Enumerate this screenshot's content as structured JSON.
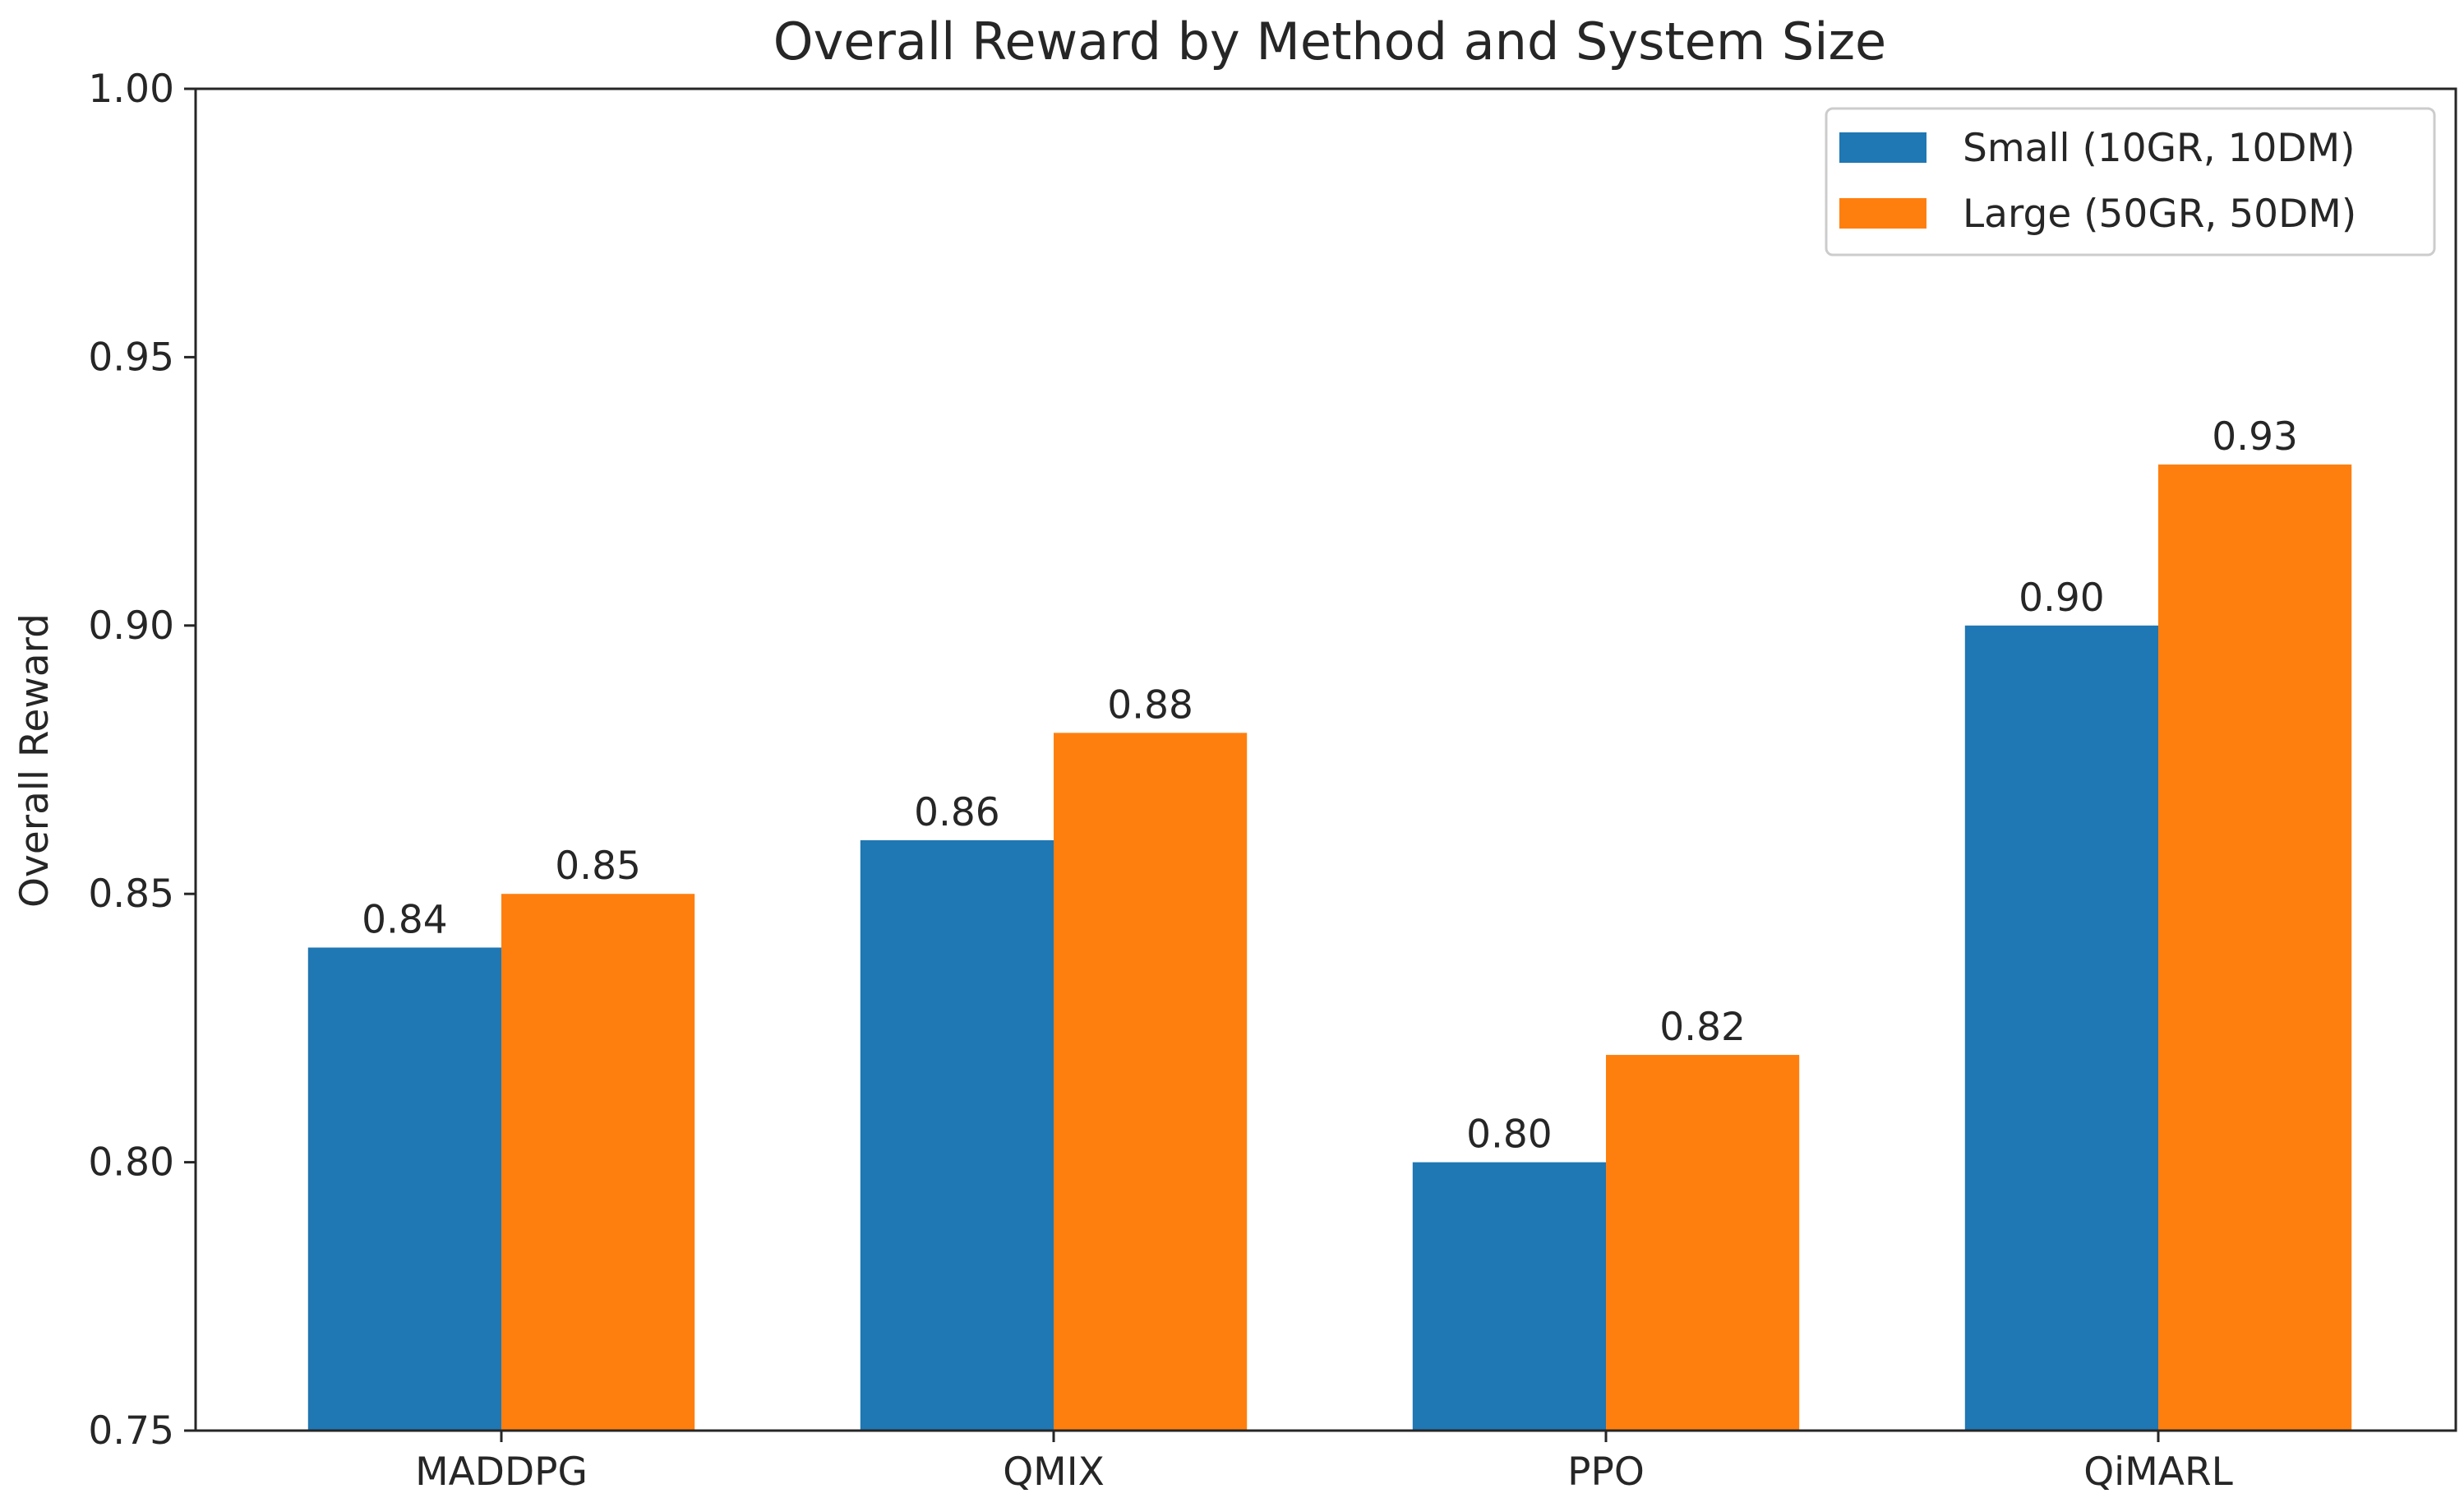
{
  "chart_data": {
    "type": "bar",
    "title": "Overall Reward by Method and System Size",
    "xlabel": "",
    "ylabel": "Overall Reward",
    "ylim": [
      0.75,
      1.0
    ],
    "yticks": [
      "0.75",
      "0.80",
      "0.85",
      "0.90",
      "0.95",
      "1.00"
    ],
    "ytick_values": [
      0.75,
      0.8,
      0.85,
      0.9,
      0.95,
      1.0
    ],
    "categories": [
      "MADDPG",
      "QMIX",
      "PPO",
      "QiMARL"
    ],
    "series": [
      {
        "name": "Small (10GR, 10DM)",
        "color": "#1f77b4",
        "values": [
          0.84,
          0.86,
          0.8,
          0.9
        ],
        "labels": [
          "0.84",
          "0.86",
          "0.80",
          "0.90"
        ]
      },
      {
        "name": "Large (50GR, 50DM)",
        "color": "#ff7f0e",
        "values": [
          0.85,
          0.88,
          0.82,
          0.93
        ],
        "labels": [
          "0.85",
          "0.88",
          "0.82",
          "0.93"
        ]
      }
    ],
    "legend_position": "top-right",
    "grid": false
  }
}
